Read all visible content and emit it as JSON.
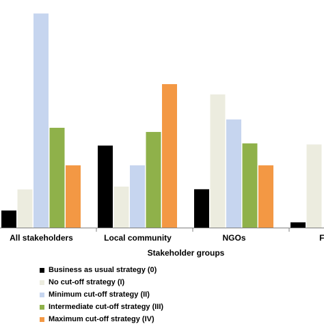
{
  "chart_data": {
    "type": "bar",
    "xlabel": "Stakeholder groups",
    "ylabel": "",
    "ylim": [
      0,
      100
    ],
    "grid": false,
    "legend_placement": "bottom",
    "categories": [
      "All stakeholders",
      "Local community",
      "NGOs",
      "Fores"
    ],
    "series": [
      {
        "name": "Business as usual strategy (0)",
        "color": "#000000",
        "values": [
          7.8,
          37.4,
          17.5,
          2.4
        ]
      },
      {
        "name": "No cut-off strategy (I)",
        "color": "#ececdf",
        "values": [
          17.4,
          18.7,
          60.7,
          37.9
        ]
      },
      {
        "name": "Minimum cut-off strategy (II)",
        "color": "#c6d5ef",
        "values": [
          97.6,
          28.4,
          49.3,
          null
        ]
      },
      {
        "name": "Intermediate cut-off strategy (III)",
        "color": "#8fb14a",
        "values": [
          45.5,
          43.6,
          38.4,
          null
        ]
      },
      {
        "name": "Maximum cut-off strategy (IV)",
        "color": "#f39844",
        "values": [
          28.4,
          65.4,
          28.4,
          null
        ]
      }
    ]
  }
}
